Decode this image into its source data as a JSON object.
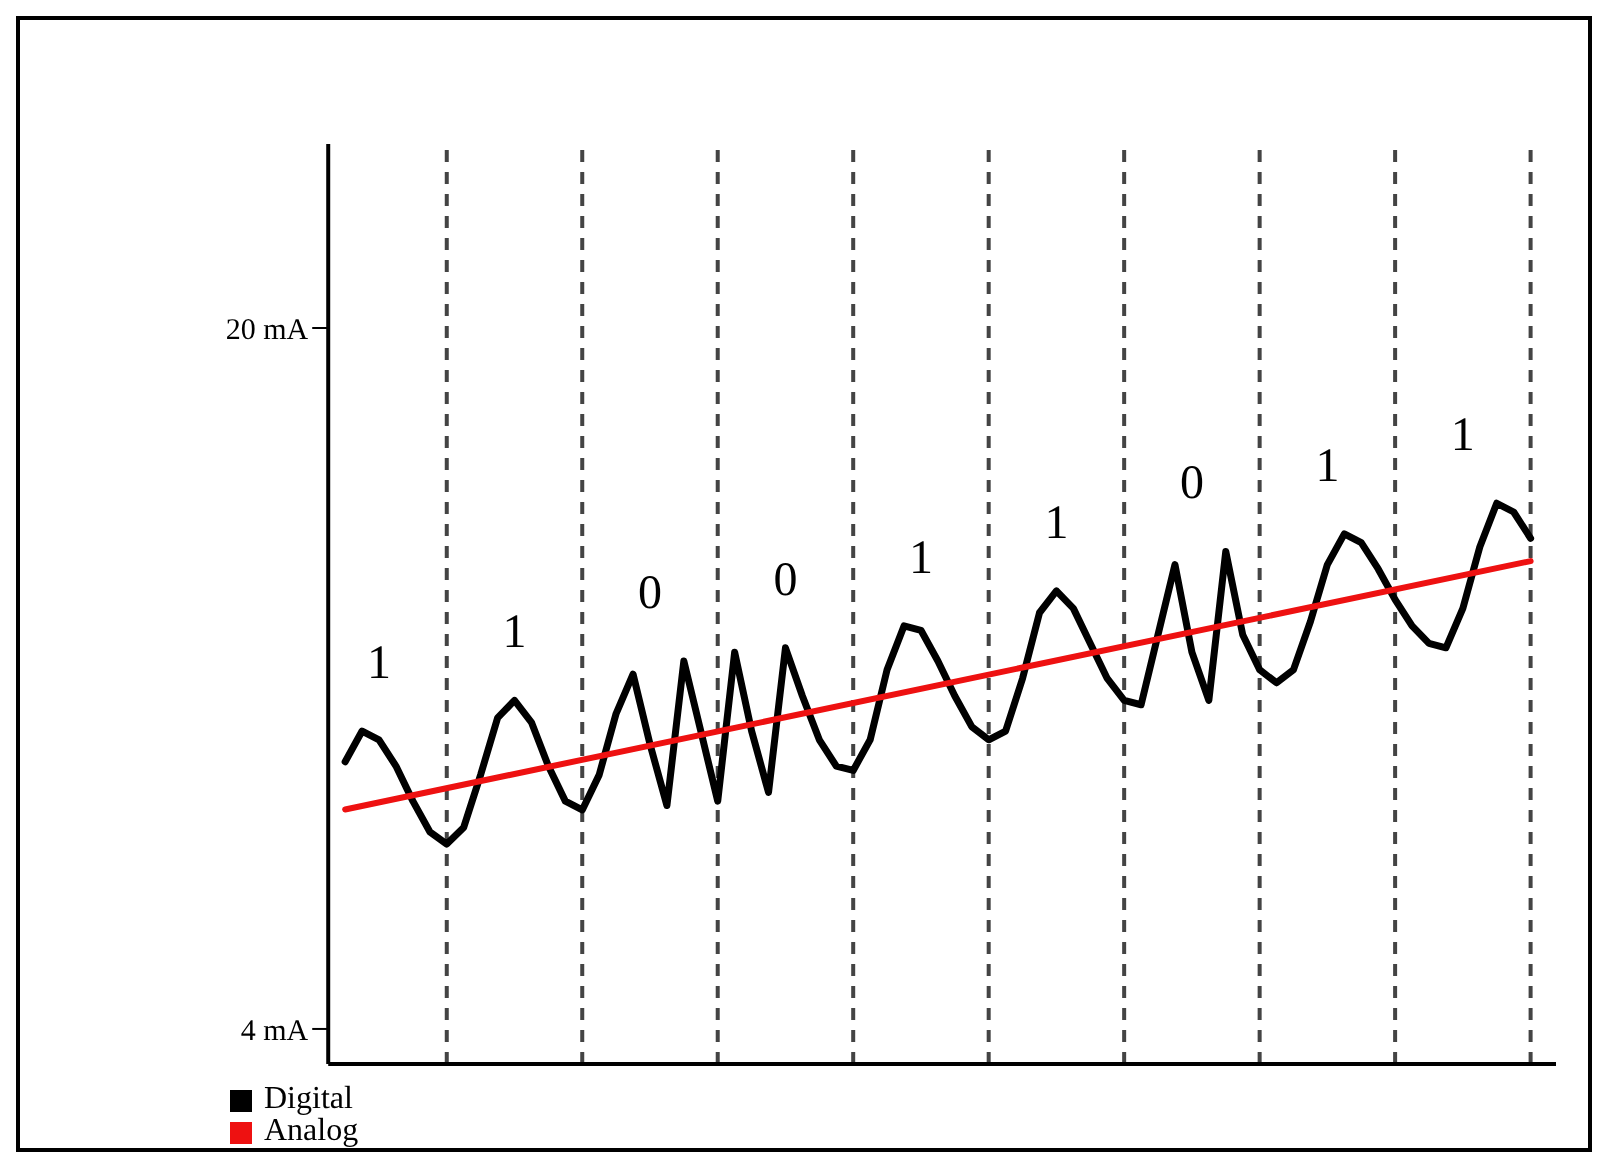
{
  "chart_data": {
    "type": "line",
    "categories": [
      null,
      null,
      null,
      null,
      null,
      null,
      null,
      null,
      null,
      null,
      null,
      null,
      null,
      null,
      null,
      null,
      null,
      null,
      null,
      null,
      null,
      null,
      null,
      null,
      null,
      null,
      null,
      null,
      null,
      null,
      null,
      null,
      null,
      null,
      null,
      null,
      null,
      null,
      null,
      null,
      null,
      null,
      null,
      null,
      null,
      null,
      null,
      null,
      null,
      null,
      null,
      null,
      null,
      null,
      null,
      null,
      null,
      null,
      null,
      null,
      null,
      null,
      null,
      null,
      null,
      null,
      null,
      null,
      null,
      null,
      null
    ],
    "ylim": [
      3.2,
      24.2
    ],
    "yticks": [
      {
        "value": 4,
        "label": "4 mA"
      },
      {
        "value": 20,
        "label": "20 mA"
      }
    ],
    "tick_labels": "y",
    "grid": "x",
    "legend": "bottom left",
    "series": [
      {
        "name": "Digital",
        "color": "#000000",
        "values": [
          10.1,
          10.8,
          10.6,
          10.0,
          9.2,
          8.5,
          8.22,
          8.6,
          9.8,
          11.1,
          11.5,
          11.0,
          10.0,
          9.2,
          9.0,
          9.8,
          11.2,
          12.1,
          10.5,
          9.1,
          12.4,
          10.8,
          9.2,
          12.6,
          10.8,
          9.4,
          12.7,
          11.6,
          10.6,
          10.0,
          9.9,
          10.6,
          12.2,
          13.2,
          13.1,
          12.4,
          11.6,
          10.9,
          10.6,
          10.8,
          12.0,
          13.5,
          14.0,
          13.6,
          12.8,
          12.0,
          11.5,
          11.4,
          13.0,
          14.6,
          12.6,
          11.5,
          14.9,
          13.0,
          12.2,
          11.9,
          12.2,
          13.3,
          14.6,
          15.3,
          15.1,
          14.5,
          13.8,
          13.2,
          12.8,
          12.7,
          13.6,
          15.0,
          16.0,
          15.8,
          15.2
        ]
      },
      {
        "name": "Analog",
        "color": "#ee1111",
        "values": [
          9.01,
          null,
          null,
          null,
          null,
          null,
          null,
          null,
          null,
          null,
          null,
          null,
          null,
          null,
          null,
          null,
          null,
          null,
          null,
          null,
          null,
          null,
          null,
          null,
          null,
          null,
          null,
          null,
          null,
          null,
          null,
          null,
          null,
          null,
          null,
          null,
          null,
          null,
          null,
          null,
          null,
          null,
          null,
          null,
          null,
          null,
          null,
          null,
          null,
          null,
          null,
          null,
          null,
          null,
          null,
          null,
          null,
          null,
          null,
          null,
          null,
          null,
          null,
          null,
          null,
          null,
          null,
          null,
          null,
          null,
          14.68
        ]
      }
    ],
    "annotations": [
      "1",
      "1",
      "0",
      "0",
      "1",
      "1",
      "0",
      "1",
      "1"
    ]
  }
}
